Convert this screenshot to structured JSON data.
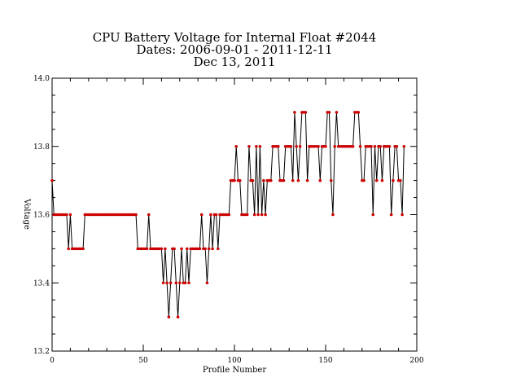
{
  "chart_data": {
    "type": "line",
    "title_lines": [
      "CPU Battery Voltage for Internal Float #2044",
      "Dates:  2006-09-01 -  2011-12-11",
      "Dec 13, 2011"
    ],
    "xlabel": "Profile Number",
    "ylabel": "Voltage",
    "line_color": "#000000",
    "marker_color": "#cc0000",
    "xlim": [
      0,
      200
    ],
    "xticks": [
      0,
      50,
      100,
      150,
      200
    ],
    "ylim": [
      13.2,
      14.0
    ],
    "yticks": [
      13.2,
      13.4,
      13.6,
      13.8,
      {
        "value": 14.0,
        "label": "14.0"
      }
    ],
    "x": [
      0,
      1,
      2,
      3,
      4,
      5,
      6,
      7,
      8,
      9,
      10,
      11,
      12,
      13,
      14,
      15,
      16,
      17,
      18,
      19,
      20,
      21,
      22,
      23,
      24,
      25,
      26,
      27,
      28,
      29,
      30,
      31,
      32,
      33,
      34,
      35,
      36,
      37,
      38,
      39,
      40,
      41,
      42,
      43,
      44,
      45,
      46,
      47,
      48,
      49,
      50,
      51,
      52,
      53,
      54,
      55,
      56,
      57,
      58,
      59,
      60,
      61,
      62,
      63,
      64,
      65,
      66,
      67,
      68,
      69,
      70,
      71,
      72,
      73,
      74,
      75,
      76,
      77,
      78,
      79,
      80,
      81,
      82,
      83,
      84,
      85,
      86,
      87,
      88,
      89,
      90,
      91,
      92,
      93,
      94,
      95,
      96,
      97,
      98,
      99,
      100,
      101,
      102,
      103,
      104,
      105,
      106,
      107,
      108,
      109,
      110,
      111,
      112,
      113,
      114,
      115,
      116,
      117,
      118,
      119,
      120,
      121,
      122,
      123,
      124,
      125,
      126,
      127,
      128,
      129,
      130,
      131,
      132,
      133,
      134,
      135,
      136,
      137,
      138,
      139,
      140,
      141,
      142,
      143,
      144,
      145,
      146,
      147,
      148,
      149,
      150,
      151,
      152,
      153,
      154,
      155,
      156,
      157,
      158,
      159,
      160,
      161,
      162,
      163,
      164,
      165,
      166,
      167,
      168,
      169,
      170,
      171,
      172,
      173,
      174,
      175,
      176,
      177,
      178,
      179,
      180,
      181,
      182,
      183,
      184,
      185,
      186,
      187,
      188,
      189,
      190,
      191,
      192,
      193
    ],
    "values": [
      13.7,
      13.6,
      13.6,
      13.6,
      13.6,
      13.6,
      13.6,
      13.6,
      13.6,
      13.5,
      13.6,
      13.5,
      13.5,
      13.5,
      13.5,
      13.5,
      13.5,
      13.5,
      13.6,
      13.6,
      13.6,
      13.6,
      13.6,
      13.6,
      13.6,
      13.6,
      13.6,
      13.6,
      13.6,
      13.6,
      13.6,
      13.6,
      13.6,
      13.6,
      13.6,
      13.6,
      13.6,
      13.6,
      13.6,
      13.6,
      13.6,
      13.6,
      13.6,
      13.6,
      13.6,
      13.6,
      13.6,
      13.5,
      13.5,
      13.5,
      13.5,
      13.5,
      13.5,
      13.6,
      13.5,
      13.5,
      13.5,
      13.5,
      13.5,
      13.5,
      13.5,
      13.4,
      13.5,
      13.4,
      13.3,
      13.4,
      13.5,
      13.5,
      13.4,
      13.3,
      13.4,
      13.5,
      13.4,
      13.4,
      13.5,
      13.4,
      13.5,
      13.5,
      13.5,
      13.5,
      13.5,
      13.5,
      13.6,
      13.5,
      13.5,
      13.4,
      13.5,
      13.6,
      13.5,
      13.6,
      13.6,
      13.5,
      13.6,
      13.6,
      13.6,
      13.6,
      13.6,
      13.6,
      13.7,
      13.7,
      13.7,
      13.8,
      13.7,
      13.7,
      13.6,
      13.6,
      13.6,
      13.6,
      13.8,
      13.7,
      13.7,
      13.6,
      13.8,
      13.6,
      13.8,
      13.6,
      13.7,
      13.6,
      13.7,
      13.7,
      13.7,
      13.8,
      13.8,
      13.8,
      13.8,
      13.7,
      13.7,
      13.7,
      13.8,
      13.8,
      13.8,
      13.8,
      13.7,
      13.9,
      13.8,
      13.7,
      13.8,
      13.9,
      13.9,
      13.9,
      13.7,
      13.8,
      13.8,
      13.8,
      13.8,
      13.8,
      13.8,
      13.7,
      13.8,
      13.8,
      13.8,
      13.9,
      13.9,
      13.7,
      13.6,
      13.8,
      13.9,
      13.8,
      13.8,
      13.8,
      13.8,
      13.8,
      13.8,
      13.8,
      13.8,
      13.8,
      13.9,
      13.9,
      13.9,
      13.8,
      13.7,
      13.7,
      13.8,
      13.8,
      13.8,
      13.8,
      13.6,
      13.8,
      13.7,
      13.8,
      13.8,
      13.7,
      13.8,
      13.8,
      13.8,
      13.8,
      13.6,
      13.7,
      13.8,
      13.8,
      13.7,
      13.7,
      13.6,
      13.8
    ]
  }
}
